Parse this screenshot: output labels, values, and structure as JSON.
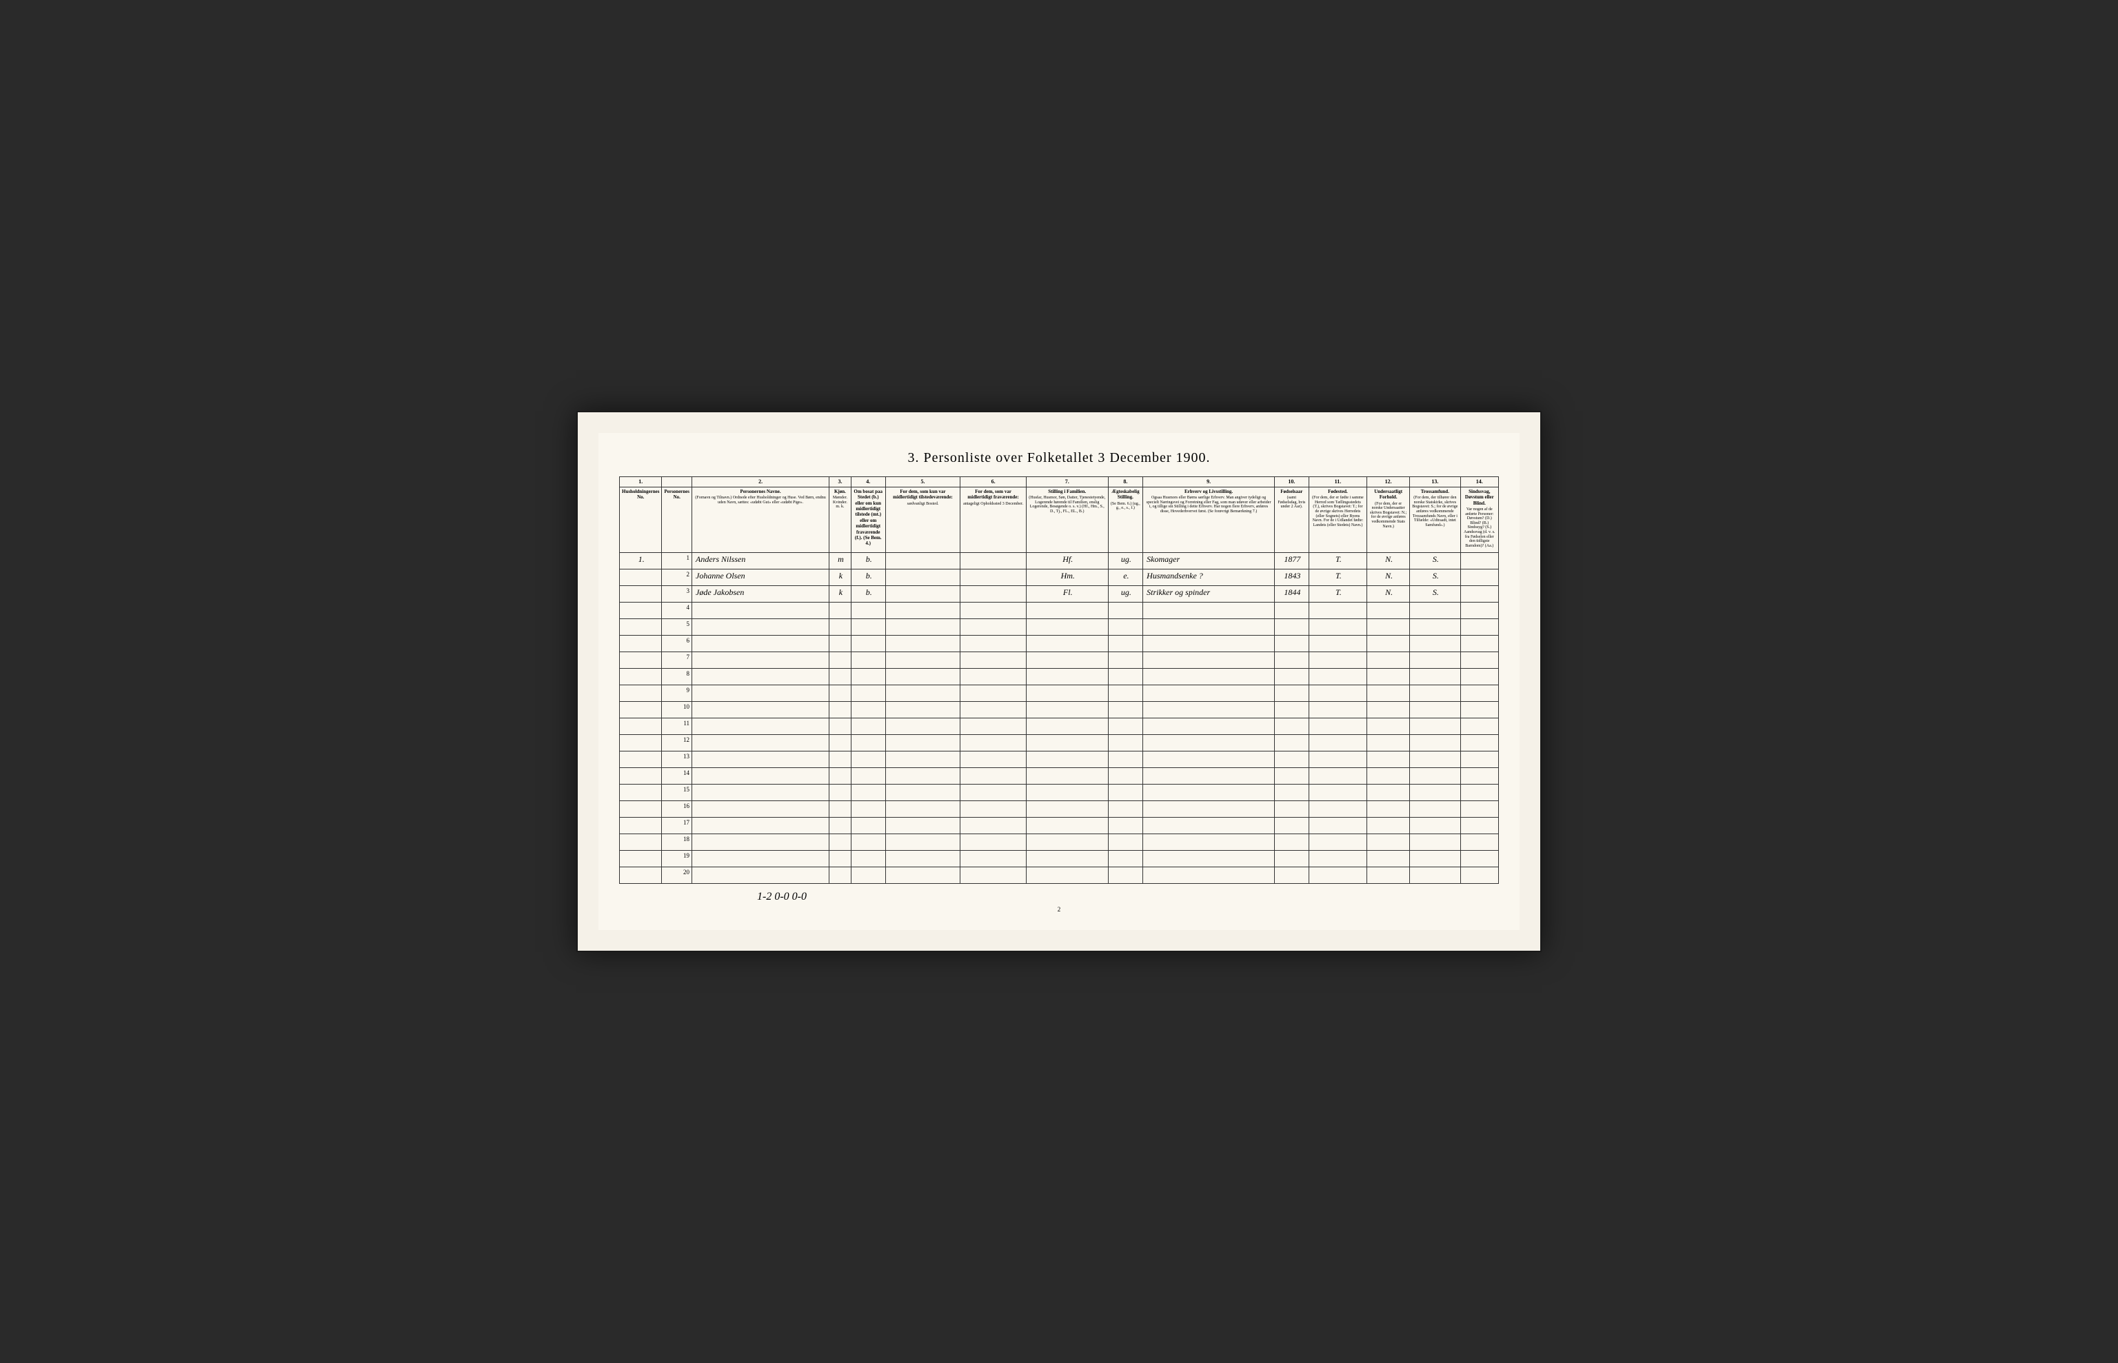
{
  "title": "3. Personliste over Folketallet 3 December 1900.",
  "columns": {
    "nums": [
      "1.",
      "",
      "2.",
      "3.",
      "4.",
      "5.",
      "6.",
      "7.",
      "8.",
      "9.",
      "10.",
      "11.",
      "12.",
      "13.",
      "14."
    ],
    "headers": [
      {
        "main": "Husholdningernes No."
      },
      {
        "main": "Personernes No."
      },
      {
        "main": "Personernes Navne.",
        "sub": "(Fornavn og Tilnavn.) Ordnede efter Husholdninger og Huse. Ved Børn, endnu uden Navn, sættes: «udøbt Gut» eller «udøbt Pige»."
      },
      {
        "main": "Kjøn.",
        "sub": "Mænder. Kvinder. m. k."
      },
      {
        "main": "Om bosat paa Stedet (b.) eller om kun midlertidigt tilstede (mt.) eller om midlertidigt fraværende (f.). (Se Bem. 4.)"
      },
      {
        "main": "For dem, som kun var midlertidigt tilstedeværende:",
        "sub": "sædvanligt Bosted."
      },
      {
        "main": "For dem, som var midlertidigt fraværende:",
        "sub": "antageligt Opholdssted 3 December."
      },
      {
        "main": "Stilling i Familien.",
        "sub": "(Husfar, Husmor, Søn, Datter, Tjenestetyende, Logerende hørende til Familien, enslig Logerende, Besøgende o. s. v.) (Hf., Hm., S., D., Tj., FL., EL., B.)"
      },
      {
        "main": "Ægteskabelig Stilling.",
        "sub": "(Se Bem. 6.) (ug., g., e., s., f.)"
      },
      {
        "main": "Erhverv og Livsstilling.",
        "sub": "Ogsaa Husmors eller Børns særlige Erhverv. Man angiver tydeligt og specielt Næringsvei og Forretning eller Fag, som man udøver eller arbeider i, og tillige sin Stilling i dette Erhverv. Har nogen flere Erhverv, anføres disse, Hovederhvervet først. (Se forøvrigt Bemærkning 7.)"
      },
      {
        "main": "Fødselsaar",
        "sub": "(samt Fødselsdag, hvis under 2 Aar)."
      },
      {
        "main": "Fødested.",
        "sub": "(For dem, der er fødte i samme Herred som Tællingsstedets (T.), skrives Bogstavet: T.; for de øvrige skrives Herredets (eller Sognets) eller Byens Navn. For de i Udlandet fødte: Landets (eller Stedets) Navn.)"
      },
      {
        "main": "Undersaatligt Forhold.",
        "sub": "(For dem, der er norske Undersaatter skrives Bogstavet: N.; for de øvrige anføres vedkommende Stats Navn.)"
      },
      {
        "main": "Trossamfund.",
        "sub": "(For dem, der tilhører den norske Statskirke, skrives Bogstavet: S.; for de øvrige anføres vedkommende Trossamfunds Navn, eller i Tilfælde: «Udtraadt, intet Samfund».)"
      },
      {
        "main": "Sindssvag, Døvstum eller Blind.",
        "sub": "Var nogen af de anførte Personer: Døvstum? (D.) Blind? (B.) Sindssyg? (S.) Aandssvag (d. v. s. fra Fødselen eller den tidligste Barndom)? (Aa.)"
      }
    ]
  },
  "rows": [
    {
      "hh": "1.",
      "no": "1",
      "name": "Anders Nilssen",
      "sex": "m",
      "res": "b.",
      "c5": "",
      "c6": "",
      "fam": "Hf.",
      "mar": "ug.",
      "occ": "Skomager",
      "year": "1877",
      "birth": "T.",
      "nat": "N.",
      "rel": "S.",
      "dis": ""
    },
    {
      "hh": "",
      "no": "2",
      "name": "Johanne Olsen",
      "sex": "k",
      "res": "b.",
      "c5": "",
      "c6": "",
      "fam": "Hm.",
      "mar": "e.",
      "occ": "Husmandsenke ?",
      "year": "1843",
      "birth": "T.",
      "nat": "N.",
      "rel": "S.",
      "dis": ""
    },
    {
      "hh": "",
      "no": "3",
      "name": "Jøde Jakobsen",
      "sex": "k",
      "res": "b.",
      "c5": "",
      "c6": "",
      "fam": "Fl.",
      "mar": "ug.",
      "occ": "Strikker og spinder",
      "year": "1844",
      "birth": "T.",
      "nat": "N.",
      "rel": "S.",
      "dis": ""
    }
  ],
  "emptyRows": [
    4,
    5,
    6,
    7,
    8,
    9,
    10,
    11,
    12,
    13,
    14,
    15,
    16,
    17,
    18,
    19,
    20
  ],
  "footerNote": "1-2    0-0    0-0",
  "pageNumber": "2",
  "style": {
    "bgOuter": "#2a2a2a",
    "bgFrame": "#f5f1e8",
    "bgPage": "#faf7ef",
    "borderColor": "#333",
    "titleFontSize": 20,
    "headerFontSize": 7,
    "bodyFontSize": 12
  }
}
